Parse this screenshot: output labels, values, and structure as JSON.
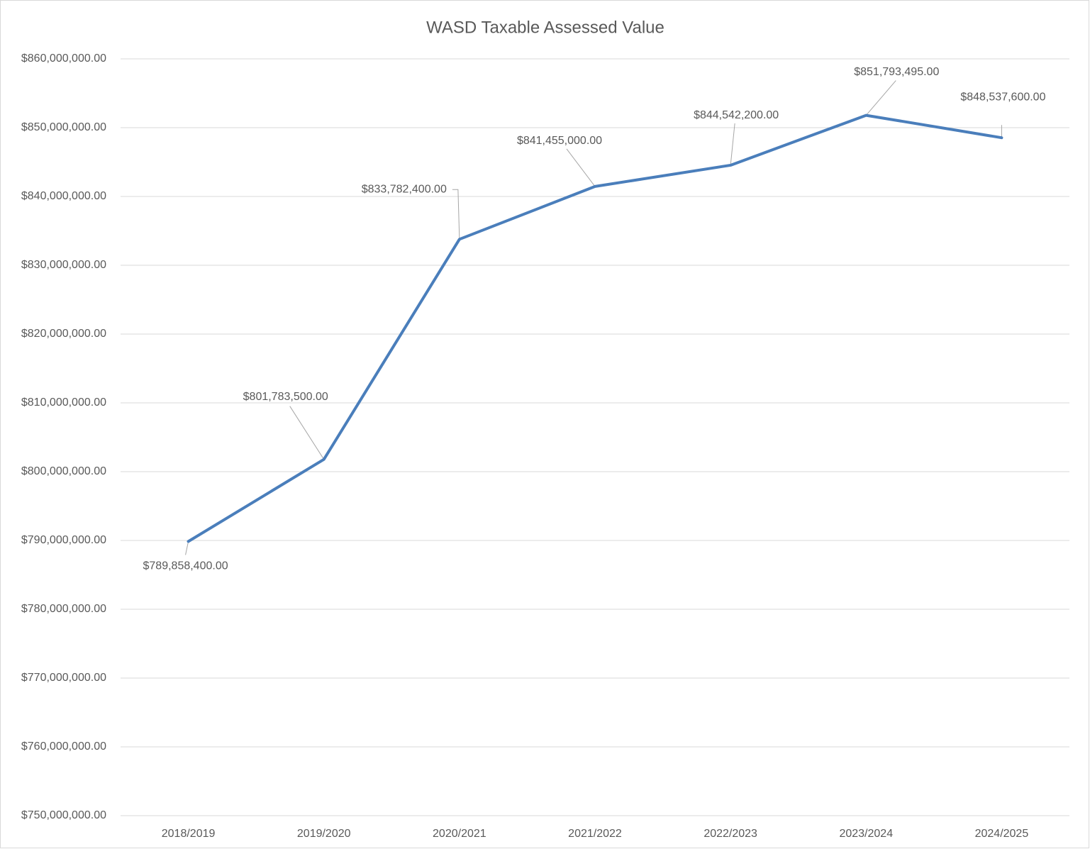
{
  "chart_data": {
    "type": "line",
    "title": "WASD Taxable Assessed Value",
    "categories": [
      "2018/2019",
      "2019/2020",
      "2020/2021",
      "2021/2022",
      "2022/2023",
      "2023/2024",
      "2024/2025"
    ],
    "values": [
      789858400,
      801783500,
      833782400,
      841455000,
      844542200,
      851793495,
      848537600
    ],
    "value_labels": [
      "$789,858,400.00",
      "$801,783,500.00",
      "$833,782,400.00",
      "$841,455,000.00",
      "$844,542,200.00",
      "$851,793,495.00",
      "$848,537,600.00"
    ],
    "color": "#4a7ebb",
    "ylim": [
      750000000,
      860000000
    ],
    "yticks": [
      {
        "value": 750000000,
        "label": "$750,000,000.00"
      },
      {
        "value": 760000000,
        "label": "$760,000,000.00"
      },
      {
        "value": 770000000,
        "label": "$770,000,000.00"
      },
      {
        "value": 780000000,
        "label": "$780,000,000.00"
      },
      {
        "value": 790000000,
        "label": "$790,000,000.00"
      },
      {
        "value": 800000000,
        "label": "$800,000,000.00"
      },
      {
        "value": 810000000,
        "label": "$810,000,000.00"
      },
      {
        "value": 820000000,
        "label": "$820,000,000.00"
      },
      {
        "value": 830000000,
        "label": "$830,000,000.00"
      },
      {
        "value": 840000000,
        "label": "$840,000,000.00"
      },
      {
        "value": 850000000,
        "label": "$850,000,000.00"
      },
      {
        "value": 860000000,
        "label": "$860,000,000.00"
      }
    ],
    "grid": true
  }
}
